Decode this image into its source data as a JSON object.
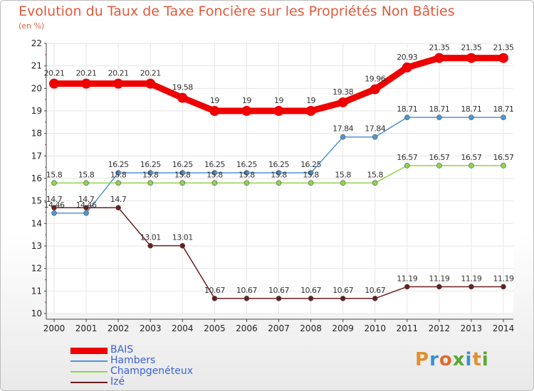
{
  "title": "Evolution du Taux de Taxe Foncière sur les Propriétés Non Bâties",
  "subtitle": "(en %)",
  "logo": {
    "text": "Proxiti",
    "colors": [
      "#e0902c",
      "#3b8fd8",
      "#e06a2c",
      "#5aa832",
      "#3b8fd8",
      "#e0902c",
      "#5aa832"
    ]
  },
  "chart_data": {
    "type": "line",
    "title": "Evolution du Taux de Taxe Foncière sur les Propriétés Non Bâties",
    "ylabel": "(en %)",
    "xlabel": "",
    "x": [
      "2000",
      "2001",
      "2002",
      "2003",
      "2004",
      "2005",
      "2006",
      "2007",
      "2008",
      "2009",
      "2010",
      "2011",
      "2012",
      "2013",
      "2014"
    ],
    "ylim": [
      10,
      22
    ],
    "yticks": [
      "10",
      "11",
      "12",
      "13",
      "14",
      "15",
      "16",
      "17",
      "18",
      "19",
      "20",
      "21",
      "22"
    ],
    "grid": true,
    "legend": "bottom-left",
    "series": [
      {
        "name": "BAIS",
        "color": "#ee0000",
        "emphasis": true,
        "values": [
          20.21,
          20.21,
          20.21,
          20.21,
          19.58,
          19,
          19,
          19,
          19,
          19.38,
          19.96,
          20.93,
          21.35,
          21.35,
          21.35
        ],
        "labels": [
          "20.21",
          "20.21",
          "20.21",
          "20.21",
          "19.58",
          "19",
          "19",
          "19",
          "19",
          "19.38",
          "19.96",
          "20.93",
          "21.35",
          "21.35",
          "21.35"
        ]
      },
      {
        "name": "Hambers",
        "color": "#4f95d2",
        "values": [
          14.46,
          14.46,
          16.25,
          16.25,
          16.25,
          16.25,
          16.25,
          16.25,
          16.25,
          17.84,
          17.84,
          18.71,
          18.71,
          18.71,
          18.71
        ],
        "labels": [
          "14.46",
          "14.46",
          "16.25",
          "16.25",
          "16.25",
          "16.25",
          "16.25",
          "16.25",
          "16.25",
          "17.84",
          "17.84",
          "18.71",
          "18.71",
          "18.71",
          "18.71"
        ]
      },
      {
        "name": "Champgenéteux",
        "color": "#8ed44a",
        "values": [
          15.8,
          15.8,
          15.8,
          15.8,
          15.8,
          15.8,
          15.8,
          15.8,
          15.8,
          15.8,
          15.8,
          16.57,
          16.57,
          16.57,
          16.57
        ],
        "labels": [
          "15.8",
          "15.8",
          "15.8",
          "15.8",
          "15.8",
          "15.8",
          "15.8",
          "15.8",
          "15.8",
          "15.8",
          "15.8",
          "16.57",
          "16.57",
          "16.57",
          "16.57"
        ]
      },
      {
        "name": "Izé",
        "color": "#6b1e1e",
        "values": [
          14.7,
          14.7,
          14.7,
          13.01,
          13.01,
          10.67,
          10.67,
          10.67,
          10.67,
          10.67,
          10.67,
          11.19,
          11.19,
          11.19,
          11.19
        ],
        "labels": [
          "14.7",
          "14.7",
          "14.7",
          "13.01",
          "13.01",
          "10.67",
          "10.67",
          "10.67",
          "10.67",
          "10.67",
          "10.67",
          "11.19",
          "11.19",
          "11.19",
          "11.19"
        ]
      }
    ]
  }
}
